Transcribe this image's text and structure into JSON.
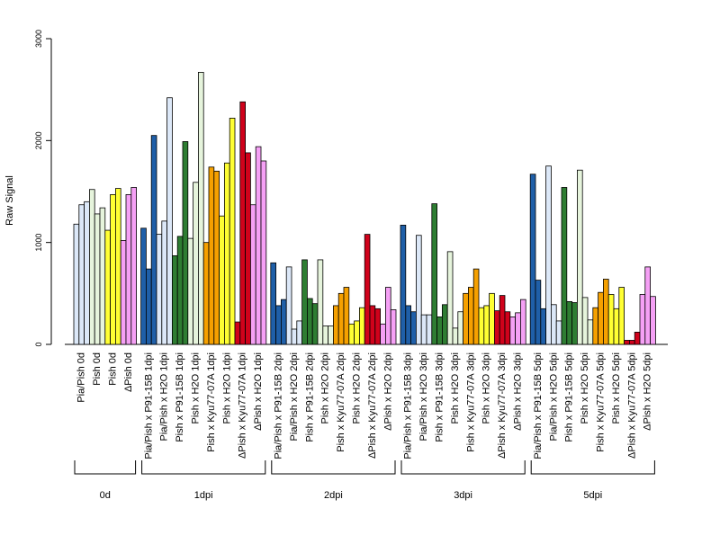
{
  "chart_data": {
    "type": "bar",
    "ylabel": "Raw Signal",
    "ylim": [
      0,
      3000
    ],
    "yticks": [
      0,
      1000,
      2000,
      3000
    ],
    "bar_border_color": "#000000",
    "groups": [
      {
        "label": "0d",
        "categories": [
          {
            "label": "Pia/Pish 0d",
            "color": "#DCE8F8",
            "values": [
              1180,
              1370,
              1400
            ]
          },
          {
            "label": "Pish 0d",
            "color": "#E6F4DC",
            "values": [
              1520,
              1280,
              1340
            ]
          },
          {
            "label": "Pish 0d",
            "color": "#FFFF33",
            "values": [
              1120,
              1470,
              1530
            ]
          },
          {
            "label": "ΔPish 0d",
            "color": "#F5A0F5",
            "values": [
              1020,
              1470,
              1540
            ]
          }
        ]
      },
      {
        "label": "1dpi",
        "categories": [
          {
            "label": "Pia/Pish x P91-15B 1dpi",
            "color": "#1F5FA8",
            "values": [
              1140,
              740,
              2050
            ]
          },
          {
            "label": "Pia/Pish x H2O 1dpi",
            "color": "#DCE8F8",
            "values": [
              1080,
              1210,
              2420
            ]
          },
          {
            "label": "Pish x P91-15B 1dpi",
            "color": "#2E7D32",
            "values": [
              870,
              1060,
              1990
            ]
          },
          {
            "label": "Pish x H2O 1dpi",
            "color": "#E6F4DC",
            "values": [
              1040,
              1590,
              2670
            ]
          },
          {
            "label": "Pish x Kyu77-07A 1dpi",
            "color": "#F5A000",
            "values": [
              1000,
              1740,
              1700
            ]
          },
          {
            "label": "Pish x H2O 1dpi",
            "color": "#FFFF33",
            "values": [
              1260,
              1780,
              2220
            ]
          },
          {
            "label": "ΔPish x Kyu77-07A 1dpi",
            "color": "#D0021B",
            "values": [
              220,
              2380,
              1880
            ]
          },
          {
            "label": "ΔPish x H2O 1dpi",
            "color": "#F5A0F5",
            "values": [
              1370,
              1940,
              1800
            ]
          }
        ]
      },
      {
        "label": "2dpi",
        "categories": [
          {
            "label": "Pia/Pish x P91-15B 2dpi",
            "color": "#1F5FA8",
            "values": [
              800,
              380,
              440
            ]
          },
          {
            "label": "Pia/Pish x H2O 2dpi",
            "color": "#DCE8F8",
            "values": [
              760,
              150,
              230
            ]
          },
          {
            "label": "Pish x P91-15B 2dpi",
            "color": "#2E7D32",
            "values": [
              830,
              450,
              400
            ]
          },
          {
            "label": "Pish x H2O 2dpi",
            "color": "#E6F4DC",
            "values": [
              830,
              180,
              180
            ]
          },
          {
            "label": "Pish x Kyu77-07A 2dpi",
            "color": "#F5A000",
            "values": [
              380,
              500,
              560
            ]
          },
          {
            "label": "Pish x H2O 2dpi",
            "color": "#FFFF33",
            "values": [
              200,
              230,
              360
            ]
          },
          {
            "label": "ΔPish x Kyu77-07A 2dpi",
            "color": "#D0021B",
            "values": [
              1080,
              380,
              350
            ]
          },
          {
            "label": "ΔPish x H2O 2dpi",
            "color": "#F5A0F5",
            "values": [
              200,
              560,
              340
            ]
          }
        ]
      },
      {
        "label": "3dpi",
        "categories": [
          {
            "label": "Pia/Pish x P91-15B 3dpi",
            "color": "#1F5FA8",
            "values": [
              1170,
              380,
              320
            ]
          },
          {
            "label": "Pia/Pish x H2O 3dpi",
            "color": "#DCE8F8",
            "values": [
              1070,
              290,
              290
            ]
          },
          {
            "label": "Pish x P91-15B 3dpi",
            "color": "#2E7D32",
            "values": [
              1380,
              270,
              390
            ]
          },
          {
            "label": "Pish x H2O 3dpi",
            "color": "#E6F4DC",
            "values": [
              910,
              160,
              320
            ]
          },
          {
            "label": "Pish x Kyu77-07A 3dpi",
            "color": "#F5A000",
            "values": [
              500,
              560,
              740
            ]
          },
          {
            "label": "Pish x H2O 3dpi",
            "color": "#FFFF33",
            "values": [
              360,
              380,
              500
            ]
          },
          {
            "label": "ΔPish x Kyu77-07A 3dpi",
            "color": "#D0021B",
            "values": [
              330,
              480,
              320
            ]
          },
          {
            "label": "ΔPish x H2O 3dpi",
            "color": "#F5A0F5",
            "values": [
              270,
              310,
              440
            ]
          }
        ]
      },
      {
        "label": "5dpi",
        "categories": [
          {
            "label": "Pia/Pish x P91-15B 5dpi",
            "color": "#1F5FA8",
            "values": [
              1670,
              630,
              350
            ]
          },
          {
            "label": "Pia/Pish x H2O 5dpi",
            "color": "#DCE8F8",
            "values": [
              1750,
              390,
              230
            ]
          },
          {
            "label": "Pish x P91-15B 5dpi",
            "color": "#2E7D32",
            "values": [
              1540,
              420,
              410
            ]
          },
          {
            "label": "Pish x H2O 5dpi",
            "color": "#E6F4DC",
            "values": [
              1710,
              460,
              240
            ]
          },
          {
            "label": "Pish x Kyu77-07A 5dpi",
            "color": "#F5A000",
            "values": [
              360,
              510,
              640
            ]
          },
          {
            "label": "Pish x H2O 5dpi",
            "color": "#FFFF33",
            "values": [
              490,
              350,
              560
            ]
          },
          {
            "label": "ΔPish x Kyu77-07A 5dpi",
            "color": "#D0021B",
            "values": [
              40,
              40,
              120
            ]
          },
          {
            "label": "ΔPish x H2O 5dpi",
            "color": "#F5A0F5",
            "values": [
              490,
              760,
              470
            ]
          }
        ]
      }
    ]
  }
}
